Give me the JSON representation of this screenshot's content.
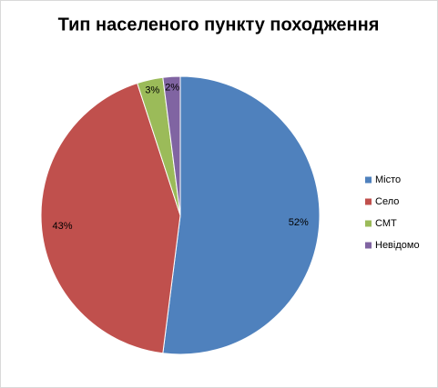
{
  "chart_data": {
    "type": "pie",
    "title": "Тип населеного пункту походження",
    "categories": [
      "Місто",
      "Село",
      "СМТ",
      "Невідомо"
    ],
    "values": [
      52,
      43,
      3,
      2
    ],
    "value_labels": [
      "52%",
      "43%",
      "3%",
      "2%"
    ],
    "colors": [
      "#4f81bd",
      "#c0504d",
      "#9bbb59",
      "#8064a2"
    ],
    "legend": "right"
  }
}
